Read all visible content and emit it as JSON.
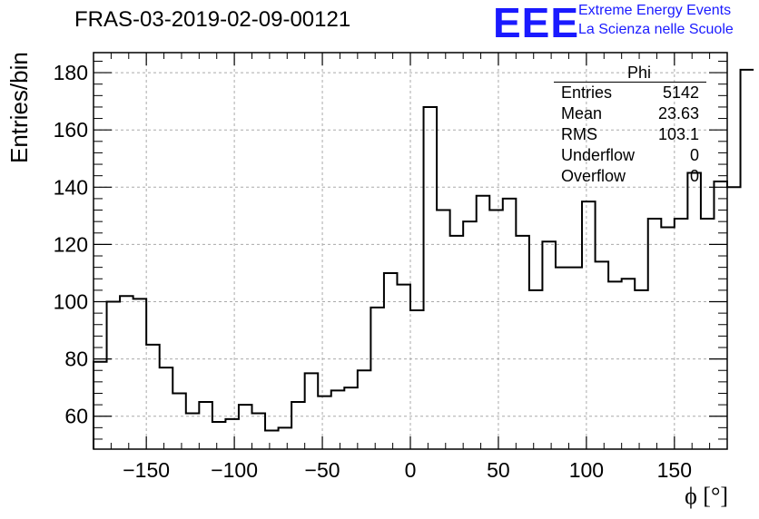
{
  "header": {
    "title": "FRAS-03-2019-02-09-00121",
    "logo_text": "EEE",
    "logo_line1": "Extreme Energy Events",
    "logo_line2": "La Scienza nelle Scuole"
  },
  "stats_box": {
    "name": "Phi",
    "rows": [
      {
        "label": "Entries",
        "value": "5142"
      },
      {
        "label": "Mean",
        "value": "23.63"
      },
      {
        "label": "RMS",
        "value": "103.1"
      },
      {
        "label": "Underflow",
        "value": "0"
      },
      {
        "label": "Overflow",
        "value": "0"
      }
    ]
  },
  "colors": {
    "logo": "#1a1aff",
    "line": "#000000",
    "grid": "#aaaaaa"
  },
  "chart_data": {
    "type": "bar",
    "style": "step-histogram",
    "title": "FRAS-03-2019-02-09-00121",
    "xlabel": "ϕ [°]",
    "ylabel": "Entries/bin",
    "xlim": [
      -180,
      180
    ],
    "ylim": [
      48.5,
      187
    ],
    "grid": true,
    "x_ticks": [
      -150,
      -100,
      -50,
      0,
      50,
      100,
      150
    ],
    "y_ticks": [
      60,
      80,
      100,
      120,
      140,
      160,
      180
    ],
    "bin_width": 7.5,
    "bin_edges_start": -180,
    "values": [
      79,
      100,
      102,
      101,
      85,
      77,
      68,
      61,
      65,
      58,
      59,
      64,
      61,
      55,
      56,
      65,
      75,
      67,
      69,
      70,
      76,
      98,
      110,
      106,
      97,
      168,
      132,
      123,
      128,
      137,
      132,
      136,
      123,
      104,
      121,
      112,
      112,
      135,
      114,
      107,
      108,
      104,
      129,
      126,
      129,
      145,
      129,
      142,
      140,
      181
    ]
  }
}
